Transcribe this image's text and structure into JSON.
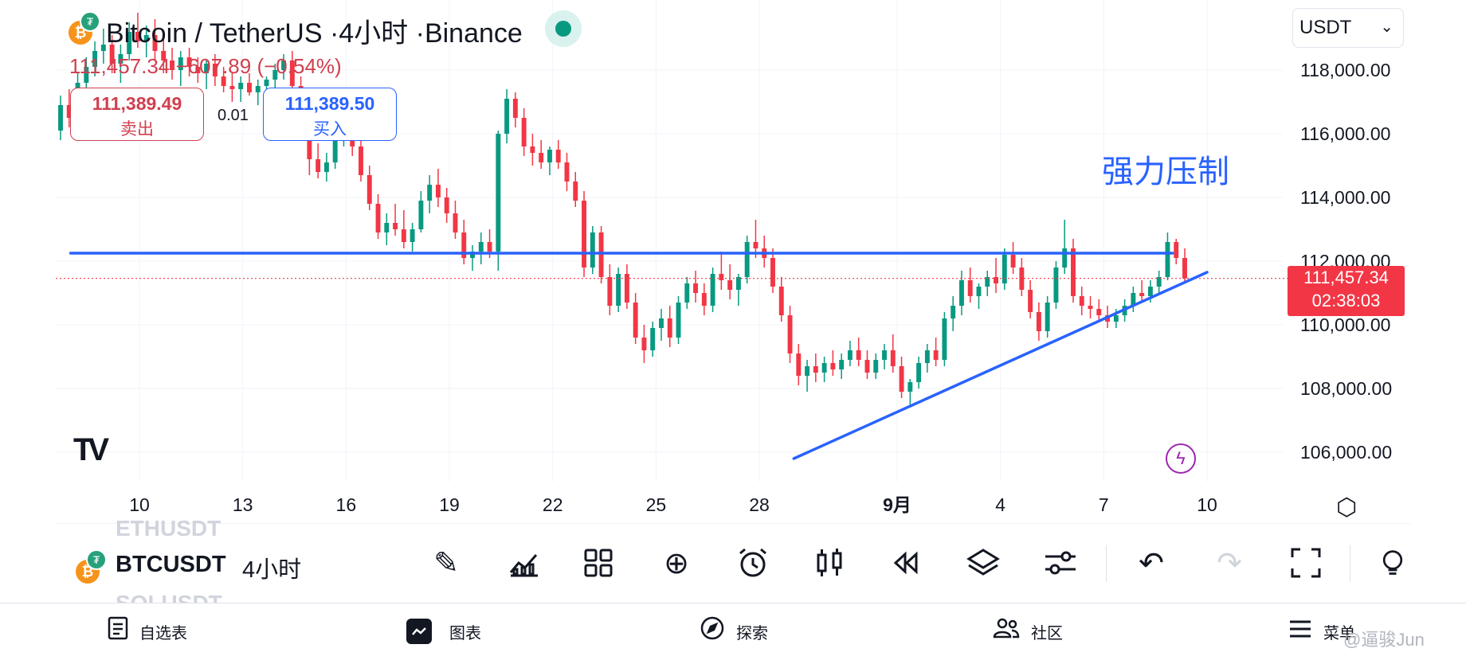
{
  "header": {
    "title": "Bitcoin / TetherUS ·4小时 ·Binance",
    "base_icon": "bitcoin-icon",
    "quote_icon": "tether-icon",
    "status_color": "#089981"
  },
  "quote": {
    "last": "111,457.34",
    "change": "−607.89",
    "change_pct": "(−0.54%)",
    "color": "#d0404f"
  },
  "trade": {
    "sell_price": "111,389.49",
    "sell_label": "卖出",
    "spread": "0.01",
    "buy_price": "111,389.50",
    "buy_label": "买入"
  },
  "currency_select": {
    "value": "USDT"
  },
  "annotation": {
    "text": "强力压制",
    "color": "#2962ff"
  },
  "price_tag": {
    "price": "111,457.34",
    "countdown": "02:38:03",
    "color": "#f23645"
  },
  "logo_text": "TV",
  "chart_data": {
    "type": "candlestick",
    "symbol": "BTCUSDT",
    "interval": "4小时",
    "y_ticks": [
      "118,000.00",
      "116,000.00",
      "114,000.00",
      "112,000.00",
      "110,000.00",
      "108,000.00",
      "106,000.00"
    ],
    "y_tick_values": [
      118000,
      116000,
      114000,
      112000,
      110000,
      108000,
      106000
    ],
    "x_ticks": [
      "10",
      "13",
      "16",
      "19",
      "22",
      "25",
      "28",
      "9月",
      "4",
      "7",
      "10"
    ],
    "x_tick_dates": [
      "2025-08-10",
      "2025-08-13",
      "2025-08-16",
      "2025-08-19",
      "2025-08-22",
      "2025-08-25",
      "2025-08-28",
      "2025-09-01",
      "2025-09-04",
      "2025-09-07",
      "2025-09-10"
    ],
    "y_range": [
      104800,
      120000
    ],
    "last_price": 111457.34,
    "up_color": "#089981",
    "down_color": "#f23645",
    "lines": [
      {
        "name": "resistance",
        "from": [
          "2025-08-08",
          112250
        ],
        "to": [
          "2025-09-09",
          112250
        ],
        "color": "#2962ff"
      },
      {
        "name": "support-trendline",
        "from": [
          "2025-08-29",
          105800
        ],
        "to": [
          "2025-09-10",
          111650
        ],
        "color": "#2962ff"
      }
    ],
    "candles": [
      [
        116100,
        117200,
        115800,
        116900
      ],
      [
        116900,
        117400,
        116200,
        116500
      ],
      [
        116500,
        117900,
        116300,
        117600
      ],
      [
        117600,
        118400,
        117300,
        118100
      ],
      [
        118100,
        118900,
        117800,
        118600
      ],
      [
        118600,
        119300,
        118200,
        118800
      ],
      [
        118800,
        119100,
        117900,
        118200
      ],
      [
        118200,
        118800,
        117600,
        118500
      ],
      [
        118500,
        119500,
        118300,
        119200
      ],
      [
        119200,
        119800,
        118700,
        118900
      ],
      [
        118900,
        119400,
        118400,
        119100
      ],
      [
        119100,
        119600,
        118300,
        118600
      ],
      [
        118600,
        119000,
        117900,
        118300
      ],
      [
        118300,
        118700,
        117700,
        118000
      ],
      [
        118000,
        118600,
        117500,
        118400
      ],
      [
        118400,
        118700,
        117800,
        118100
      ],
      [
        118100,
        118400,
        117600,
        117900
      ],
      [
        117900,
        118300,
        117400,
        118200
      ],
      [
        118200,
        118500,
        117500,
        117800
      ],
      [
        117800,
        118100,
        117300,
        117500
      ],
      [
        117500,
        117900,
        117000,
        117400
      ],
      [
        117400,
        117800,
        117000,
        117600
      ],
      [
        117600,
        117900,
        117200,
        117300
      ],
      [
        117300,
        117700,
        116900,
        117500
      ],
      [
        117500,
        117800,
        117100,
        117700
      ],
      [
        117700,
        118200,
        117400,
        118000
      ],
      [
        118000,
        118500,
        117700,
        118300
      ],
      [
        118300,
        118600,
        117300,
        117500
      ],
      [
        117500,
        117800,
        116600,
        116800
      ],
      [
        116800,
        117100,
        114700,
        115200
      ],
      [
        115200,
        115700,
        114600,
        114800
      ],
      [
        114800,
        115400,
        114500,
        115100
      ],
      [
        115100,
        116200,
        114900,
        116000
      ],
      [
        116000,
        116900,
        115600,
        116500
      ],
      [
        116500,
        116800,
        115300,
        115600
      ],
      [
        115600,
        115900,
        114500,
        114700
      ],
      [
        114700,
        115000,
        113600,
        113800
      ],
      [
        113800,
        114100,
        112700,
        112900
      ],
      [
        112900,
        113500,
        112500,
        113200
      ],
      [
        113200,
        113800,
        112800,
        113000
      ],
      [
        113000,
        113600,
        112400,
        112600
      ],
      [
        112600,
        113200,
        112300,
        113000
      ],
      [
        113000,
        114200,
        112900,
        113900
      ],
      [
        113900,
        114700,
        113500,
        114400
      ],
      [
        114400,
        114900,
        113700,
        114000
      ],
      [
        114000,
        114300,
        113200,
        113500
      ],
      [
        113500,
        113900,
        112700,
        112900
      ],
      [
        112900,
        113300,
        111900,
        112100
      ],
      [
        112100,
        112500,
        111700,
        112300
      ],
      [
        112300,
        112900,
        111900,
        112600
      ],
      [
        112600,
        113000,
        112100,
        112300
      ],
      [
        112300,
        116100,
        111700,
        116000
      ],
      [
        116000,
        117400,
        115700,
        117100
      ],
      [
        117100,
        117300,
        116200,
        116500
      ],
      [
        116500,
        116800,
        115300,
        115600
      ],
      [
        115600,
        116000,
        115000,
        115400
      ],
      [
        115400,
        115800,
        114900,
        115100
      ],
      [
        115100,
        115600,
        114700,
        115500
      ],
      [
        115500,
        115800,
        114900,
        115100
      ],
      [
        115100,
        115400,
        114200,
        114500
      ],
      [
        114500,
        114800,
        113700,
        113900
      ],
      [
        113900,
        114200,
        111500,
        111800
      ],
      [
        111800,
        113100,
        111600,
        112900
      ],
      [
        112900,
        113100,
        111300,
        111500
      ],
      [
        111500,
        111900,
        110300,
        110600
      ],
      [
        110600,
        111800,
        110400,
        111600
      ],
      [
        111600,
        111900,
        110500,
        110700
      ],
      [
        110700,
        111000,
        109400,
        109600
      ],
      [
        109600,
        110000,
        108800,
        109200
      ],
      [
        109200,
        110100,
        109000,
        109900
      ],
      [
        109900,
        110500,
        109500,
        110200
      ],
      [
        110200,
        110600,
        109300,
        109600
      ],
      [
        109600,
        110900,
        109400,
        110700
      ],
      [
        110700,
        111500,
        110500,
        111300
      ],
      [
        111300,
        111700,
        110700,
        111000
      ],
      [
        111000,
        111300,
        110300,
        110600
      ],
      [
        110600,
        111800,
        110400,
        111600
      ],
      [
        111600,
        112300,
        111100,
        111400
      ],
      [
        111400,
        111900,
        110800,
        111100
      ],
      [
        111100,
        111600,
        110600,
        111500
      ],
      [
        111500,
        112800,
        111300,
        112600
      ],
      [
        112600,
        113300,
        112100,
        112400
      ],
      [
        112400,
        112800,
        111800,
        112100
      ],
      [
        112100,
        112400,
        111000,
        111200
      ],
      [
        111200,
        111500,
        110100,
        110300
      ],
      [
        110300,
        110600,
        108800,
        109100
      ],
      [
        109100,
        109400,
        108100,
        108400
      ],
      [
        108400,
        108900,
        107900,
        108700
      ],
      [
        108700,
        109100,
        108200,
        108500
      ],
      [
        108500,
        109000,
        108200,
        108800
      ],
      [
        108800,
        109200,
        108400,
        108600
      ],
      [
        108600,
        109100,
        108300,
        108900
      ],
      [
        108900,
        109500,
        108700,
        109200
      ],
      [
        109200,
        109600,
        108700,
        108900
      ],
      [
        108900,
        109200,
        108300,
        108500
      ],
      [
        108500,
        109100,
        108300,
        108900
      ],
      [
        108900,
        109400,
        108600,
        109200
      ],
      [
        109200,
        109700,
        108500,
        108700
      ],
      [
        108700,
        109000,
        107700,
        107900
      ],
      [
        107900,
        108300,
        107400,
        108200
      ],
      [
        108200,
        109000,
        108000,
        108800
      ],
      [
        108800,
        109400,
        108500,
        109200
      ],
      [
        109200,
        109600,
        108700,
        108900
      ],
      [
        108900,
        110400,
        108700,
        110200
      ],
      [
        110200,
        110900,
        109800,
        110600
      ],
      [
        110600,
        111700,
        110300,
        111400
      ],
      [
        111400,
        111800,
        110700,
        110900
      ],
      [
        110900,
        111300,
        110500,
        111200
      ],
      [
        111200,
        111700,
        110900,
        111500
      ],
      [
        111500,
        112100,
        111000,
        111300
      ],
      [
        111300,
        112400,
        111100,
        112200
      ],
      [
        112200,
        112600,
        111600,
        111800
      ],
      [
        111800,
        112100,
        110900,
        111100
      ],
      [
        111100,
        111400,
        110200,
        110400
      ],
      [
        110400,
        110700,
        109500,
        109800
      ],
      [
        109800,
        110900,
        109600,
        110700
      ],
      [
        110700,
        112000,
        110500,
        111800
      ],
      [
        111800,
        113300,
        111600,
        112400
      ],
      [
        112400,
        112700,
        110700,
        110900
      ],
      [
        110900,
        111200,
        110300,
        110600
      ],
      [
        110600,
        110900,
        110200,
        110500
      ],
      [
        110500,
        110800,
        110100,
        110300
      ],
      [
        110300,
        110600,
        109900,
        110100
      ],
      [
        110100,
        110500,
        109900,
        110300
      ],
      [
        110300,
        110800,
        110100,
        110600
      ],
      [
        110600,
        111200,
        110400,
        111000
      ],
      [
        111000,
        111400,
        110700,
        110900
      ],
      [
        110900,
        111400,
        110700,
        111200
      ],
      [
        111200,
        111700,
        111000,
        111500
      ],
      [
        111500,
        112900,
        111400,
        112600
      ],
      [
        112600,
        112700,
        111900,
        112100
      ],
      [
        112100,
        112400,
        111300,
        111457
      ]
    ]
  },
  "toolbar": {
    "symbol": "BTCUSDT",
    "symbol_ghost_prev": "ETHUSDT",
    "symbol_ghost_next": "SOLUSDT",
    "interval": "4小时",
    "tools": [
      {
        "name": "draw-tool-icon",
        "glyph": "✎"
      },
      {
        "name": "indicators-icon",
        "glyph": "📊"
      },
      {
        "name": "templates-icon",
        "glyph": "▦"
      },
      {
        "name": "add-icon",
        "glyph": "⊕"
      },
      {
        "name": "alarm-icon",
        "glyph": "⏰"
      },
      {
        "name": "candle-style-icon",
        "glyph": "⫿"
      },
      {
        "name": "replay-icon",
        "glyph": "⏪"
      },
      {
        "name": "layers-icon",
        "glyph": "◈"
      },
      {
        "name": "settings-sliders-icon",
        "glyph": "⚟"
      },
      {
        "name": "undo-icon",
        "glyph": "↶"
      },
      {
        "name": "redo-icon",
        "glyph": "↷"
      },
      {
        "name": "fullscreen-icon",
        "glyph": "⛶"
      },
      {
        "name": "idea-icon",
        "glyph": "💡"
      }
    ]
  },
  "bottom_nav": {
    "items": [
      {
        "label": "自选表",
        "icon": "watchlist-icon"
      },
      {
        "label": "图表",
        "icon": "chart-icon"
      },
      {
        "label": "探索",
        "icon": "compass-icon"
      },
      {
        "label": "社区",
        "icon": "community-icon"
      },
      {
        "label": "菜单",
        "icon": "menu-icon"
      }
    ]
  },
  "watermark": "@逼骏Jun"
}
